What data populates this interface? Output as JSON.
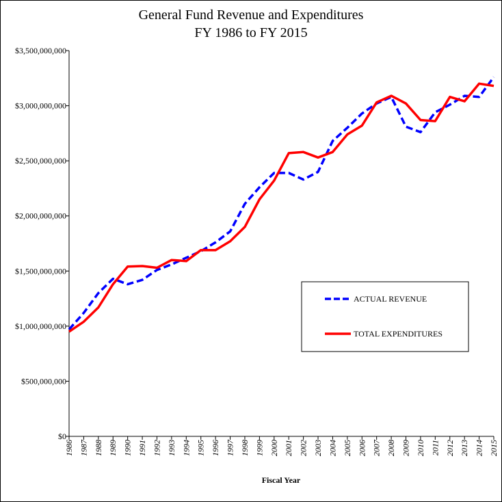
{
  "chart_data": {
    "type": "line",
    "title": "General Fund Revenue and Expenditures",
    "subtitle": "FY 1986 to FY 2015",
    "xlabel": "Fiscal Year",
    "ylabel": "",
    "ylim": [
      0,
      3500000000
    ],
    "y_ticks": [
      0,
      500000000,
      1000000000,
      1500000000,
      2000000000,
      2500000000,
      3000000000,
      3500000000
    ],
    "y_tick_labels": [
      "$0",
      "$500,000,000",
      "$1,000,000,000",
      "$1,500,000,000",
      "$2,000,000,000",
      "$2,500,000,000",
      "$3,000,000,000",
      "$3,500,000,000"
    ],
    "categories": [
      "1986",
      "1987",
      "1988",
      "1989",
      "1990",
      "1991",
      "1992",
      "1993",
      "1994",
      "1995",
      "1996",
      "1997",
      "1998",
      "1999",
      "2000",
      "2001",
      "2002",
      "2003",
      "2004",
      "2005",
      "2006",
      "2007",
      "2008",
      "2009",
      "2010",
      "2011",
      "2012",
      "2013",
      "2014",
      "2015"
    ],
    "grid": false,
    "legend_position": "center-right",
    "series": [
      {
        "name": "ACTUAL REVENUE",
        "style": "dashed",
        "color": "#0000ff",
        "values": [
          970000000,
          1120000000,
          1300000000,
          1430000000,
          1380000000,
          1420000000,
          1510000000,
          1560000000,
          1620000000,
          1680000000,
          1760000000,
          1860000000,
          2110000000,
          2260000000,
          2390000000,
          2390000000,
          2330000000,
          2400000000,
          2680000000,
          2800000000,
          2930000000,
          3020000000,
          3080000000,
          2810000000,
          2760000000,
          2940000000,
          3010000000,
          3090000000,
          3080000000,
          3260000000
        ]
      },
      {
        "name": "TOTAL EXPENDITURES",
        "style": "solid",
        "color": "#ff0000",
        "values": [
          950000000,
          1040000000,
          1170000000,
          1380000000,
          1540000000,
          1545000000,
          1530000000,
          1600000000,
          1590000000,
          1690000000,
          1690000000,
          1770000000,
          1900000000,
          2150000000,
          2320000000,
          2570000000,
          2580000000,
          2530000000,
          2580000000,
          2740000000,
          2820000000,
          3030000000,
          3090000000,
          3020000000,
          2870000000,
          2860000000,
          3080000000,
          3040000000,
          3200000000,
          3180000000
        ]
      }
    ]
  }
}
